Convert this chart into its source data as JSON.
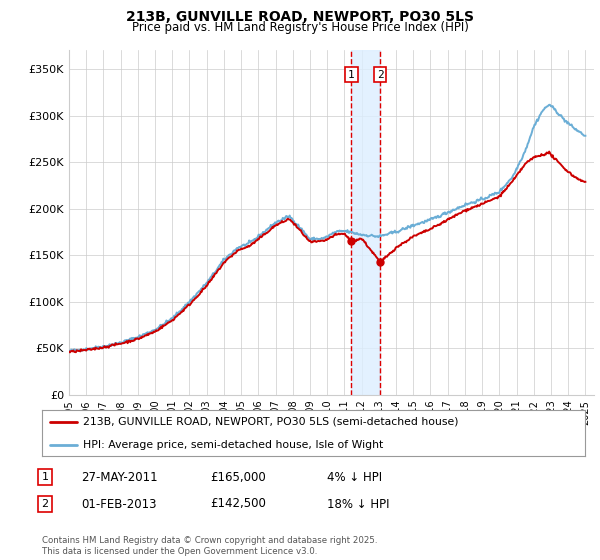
{
  "title_line1": "213B, GUNVILLE ROAD, NEWPORT, PO30 5LS",
  "title_line2": "Price paid vs. HM Land Registry's House Price Index (HPI)",
  "ylabel_ticks": [
    "£0",
    "£50K",
    "£100K",
    "£150K",
    "£200K",
    "£250K",
    "£300K",
    "£350K"
  ],
  "ylabel_values": [
    0,
    50000,
    100000,
    150000,
    200000,
    250000,
    300000,
    350000
  ],
  "ylim": [
    0,
    370000
  ],
  "xlim_start": 1995.0,
  "xlim_end": 2025.5,
  "hpi_color": "#6baed6",
  "price_color": "#cc0000",
  "transaction1_date": 2011.41,
  "transaction1_price": 165000,
  "transaction2_date": 2013.08,
  "transaction2_price": 142500,
  "shade_color": "#ddeeff",
  "dashed_color": "#dd0000",
  "legend_line1": "213B, GUNVILLE ROAD, NEWPORT, PO30 5LS (semi-detached house)",
  "legend_line2": "HPI: Average price, semi-detached house, Isle of Wight",
  "footer": "Contains HM Land Registry data © Crown copyright and database right 2025.\nThis data is licensed under the Open Government Licence v3.0.",
  "xtick_years": [
    1995,
    1996,
    1997,
    1998,
    1999,
    2000,
    2001,
    2002,
    2003,
    2004,
    2005,
    2006,
    2007,
    2008,
    2009,
    2010,
    2011,
    2012,
    2013,
    2014,
    2015,
    2016,
    2017,
    2018,
    2019,
    2020,
    2021,
    2022,
    2023,
    2024,
    2025
  ],
  "background_color": "#ffffff",
  "grid_color": "#cccccc"
}
